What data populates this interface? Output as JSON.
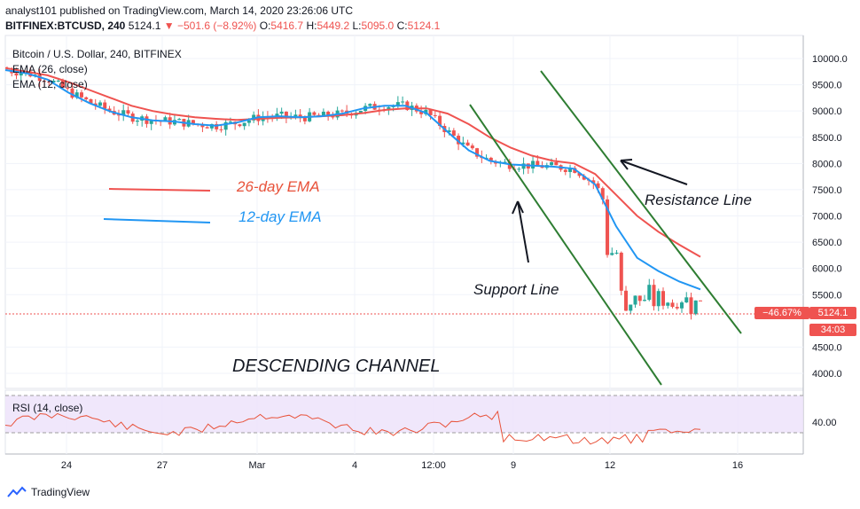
{
  "header": {
    "publisher_line": "analyst101 published on TradingView.com, March 14, 2020 23:26:06 UTC",
    "symbol_line": "BITFINEX:BTCUSD, 240",
    "last_price": "5124.1",
    "change": "−501.6 (−8.92%)",
    "o_label": "O:",
    "o_value": "5416.7",
    "h_label": "H:",
    "h_value": "5449.2",
    "l_label": "L:",
    "l_value": "5095.0",
    "c_label": "C:",
    "c_value": "5124.1"
  },
  "legend": {
    "symbol": "Bitcoin / U.S. Dollar, 240, BITFINEX",
    "ema26": "EMA (26, close)",
    "ema12": "EMA (12, close)",
    "rsi": "RSI (14, close)"
  },
  "annotations": {
    "ema26_label": "26-day EMA",
    "ema12_label": "12-day EMA",
    "resistance": "Resistance Line",
    "support": "Support Line",
    "channel": "DESCENDING CHANNEL"
  },
  "badges": {
    "pct": "−46.67%",
    "price": "5124.1",
    "countdown": "34:03"
  },
  "brand": "TradingView",
  "colors": {
    "up": "#26a69a",
    "down": "#ef5350",
    "ema26": "#ef5350",
    "ema12": "#2196f3",
    "channel": "#2e7d32",
    "rsi_band": "#e9d7f7",
    "rsi_line": "#e8523a"
  },
  "chart_data": [
    {
      "type": "candlestick",
      "title": "Bitcoin / U.S. Dollar, 240, BITFINEX",
      "x_ticks": [
        "24",
        "27",
        "Mar",
        "4",
        "12:00",
        "9",
        "12",
        "16"
      ],
      "y_ticks": [
        "10000.0",
        "9500.0",
        "9000.0",
        "8500.0",
        "8000.0",
        "7500.0",
        "7000.0",
        "6500.0",
        "6000.0",
        "5500.0",
        "4500.0",
        "4000.0"
      ],
      "ylim": [
        3800,
        10300
      ],
      "ema26": [
        9820,
        9750,
        9680,
        9550,
        9400,
        9250,
        9100,
        9000,
        8930,
        8880,
        8850,
        8830,
        8850,
        8870,
        8880,
        8900,
        8920,
        8960,
        9020,
        9050,
        9050,
        8950,
        8750,
        8500,
        8300,
        8150,
        8050,
        8000,
        7800,
        7400,
        7000,
        6700,
        6450,
        6220
      ],
      "ema12": [
        9780,
        9720,
        9600,
        9350,
        9150,
        8990,
        8880,
        8820,
        8800,
        8750,
        8720,
        8780,
        8880,
        8900,
        8880,
        8900,
        8950,
        9050,
        9100,
        9100,
        8960,
        8600,
        8250,
        8050,
        7980,
        7960,
        7940,
        7900,
        7600,
        6800,
        6200,
        5950,
        5750,
        5600
      ],
      "last_price": 5124.1
    },
    {
      "type": "line",
      "title": "RSI (14, close)",
      "y_ticks": [
        "40.00"
      ]
    }
  ]
}
